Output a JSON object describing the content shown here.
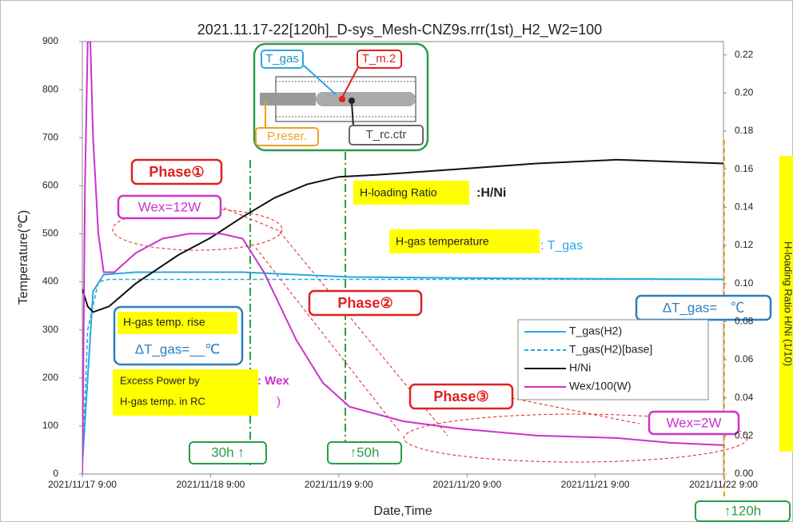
{
  "chart_data": {
    "type": "line",
    "title": "2021.11.17-22[120h]_D-sys_Mesh-CNZ9s.rrr(1st)_H2_W2=100",
    "xlabel": "Date,Time",
    "ylabel": "Temperature(℃)",
    "y2label": "H-loading Ratio H/Ni (1/10)",
    "xlim": [
      0,
      120
    ],
    "xticks": [
      {
        "value": 0,
        "label": "2021/11/17 9:00"
      },
      {
        "value": 24,
        "label": "2021/11/18 9:00"
      },
      {
        "value": 48,
        "label": "2021/11/19 9:00"
      },
      {
        "value": 72,
        "label": "2021/11/20 9:00"
      },
      {
        "value": 96,
        "label": "2021/11/21 9:00"
      },
      {
        "value": 120,
        "label": "2021/11/22 9:00"
      }
    ],
    "ylim": [
      0,
      900
    ],
    "yticks": [
      0,
      100,
      200,
      300,
      400,
      500,
      600,
      700,
      800,
      900
    ],
    "y2lim": [
      0,
      0.227
    ],
    "y2ticks": [
      {
        "value": 0,
        "label": "0.00"
      },
      {
        "value": 0.02,
        "label": "0.02"
      },
      {
        "value": 0.04,
        "label": "0.04"
      },
      {
        "value": 0.06,
        "label": "0.06"
      },
      {
        "value": 0.08,
        "label": "0.08"
      },
      {
        "value": 0.1,
        "label": "0.10"
      },
      {
        "value": 0.12,
        "label": "0.12"
      },
      {
        "value": 0.14,
        "label": "0.14"
      },
      {
        "value": 0.16,
        "label": "0.16"
      },
      {
        "value": 0.18,
        "label": "0.18"
      },
      {
        "value": 0.2,
        "label": "0.20"
      },
      {
        "value": 0.22,
        "label": "0.22"
      }
    ],
    "grid": false,
    "legend": "lower right",
    "series": [
      {
        "name": "T_gas(H2)",
        "color": "#29a8e0",
        "dash": false,
        "x": [
          0,
          1,
          2,
          4,
          10,
          30,
          40,
          50,
          80,
          120
        ],
        "values": [
          20,
          200,
          380,
          415,
          420,
          420,
          415,
          410,
          407,
          405
        ]
      },
      {
        "name": "T_gas(H2)[base]",
        "color": "#29a8e0",
        "dash": true,
        "x": [
          0,
          1,
          3,
          5,
          120
        ],
        "values": [
          20,
          300,
          400,
          405,
          405
        ]
      },
      {
        "name": "H/Ni",
        "color": "#111111",
        "dash": false,
        "axis": "y2",
        "x": [
          0,
          1,
          2,
          5,
          10,
          18,
          24,
          30,
          36,
          42,
          48,
          55,
          70,
          85,
          100,
          120
        ],
        "values": [
          0.097,
          0.088,
          0.085,
          0.088,
          0.1,
          0.115,
          0.124,
          0.135,
          0.145,
          0.152,
          0.156,
          0.157,
          0.16,
          0.163,
          0.165,
          0.163
        ]
      },
      {
        "name": "Wex/100(W)",
        "color": "#cc33cc",
        "dash": false,
        "x": [
          0,
          0.5,
          1,
          1.5,
          2,
          3,
          4,
          6,
          10,
          15,
          20,
          26,
          30,
          34,
          40,
          45,
          50,
          60,
          70,
          85,
          100,
          110,
          120
        ],
        "values": [
          0,
          600,
          900,
          900,
          700,
          500,
          420,
          420,
          460,
          490,
          500,
          500,
          490,
          420,
          280,
          190,
          140,
          110,
          95,
          80,
          75,
          65,
          60
        ]
      }
    ],
    "annotations": [
      "Phase①",
      "Wex=12W",
      "Phase②",
      "Phase③",
      "Wex=2W",
      "H-loading Ratio",
      ":H/Ni",
      "H-gas temperature",
      ": T_gas",
      "ΔT_gas=　℃",
      "H-gas temp. rise",
      "ΔT_gas=__℃",
      "Excess Power by",
      "H-gas temp. in RC",
      ": Wex",
      ")",
      "30h ↑",
      "↑50h",
      "↑120h",
      "T_gas",
      "T_m.2",
      "P.reser.",
      "T_rc.ctr"
    ]
  }
}
